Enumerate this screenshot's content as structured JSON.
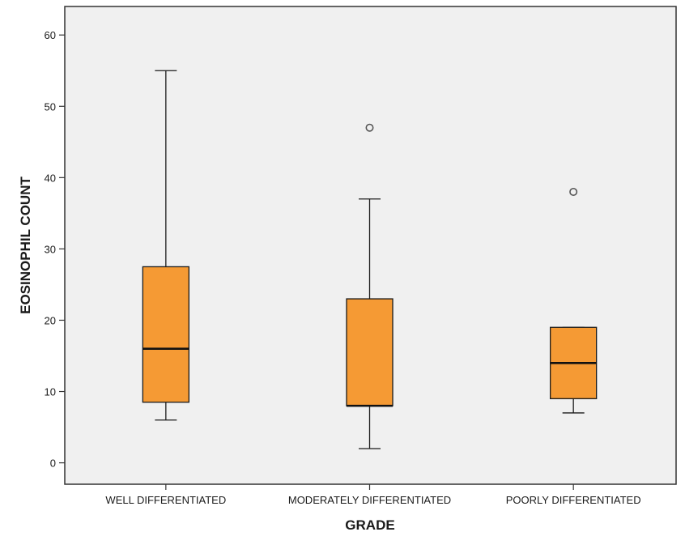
{
  "chart_data": {
    "type": "boxplot",
    "xlabel": "GRADE",
    "ylabel": "EOSINOPHIL COUNT",
    "ylim": [
      -3,
      64
    ],
    "yticks": [
      0,
      10,
      20,
      30,
      40,
      50,
      60
    ],
    "yticks_text": [
      "0",
      "10",
      "20",
      "30",
      "40",
      "50",
      "60"
    ],
    "categories": [
      "WELL DIFFERENTIATED",
      "MODERATELY DIFFERENTIATED",
      "POORLY DIFFERENTIATED"
    ],
    "boxes": [
      {
        "category": "WELL DIFFERENTIATED",
        "min": 6,
        "q1": 8.5,
        "median": 16,
        "q3": 27.5,
        "max": 55,
        "outliers": []
      },
      {
        "category": "MODERATELY DIFFERENTIATED",
        "min": 2,
        "q1": 8,
        "median": 8,
        "q3": 23,
        "max": 37,
        "outliers": [
          47
        ]
      },
      {
        "category": "POORLY DIFFERENTIATED",
        "min": 7,
        "q1": 9,
        "median": 14,
        "q3": 19,
        "max": 19,
        "outliers": [
          38
        ]
      }
    ],
    "grid": false,
    "colors": {
      "box_fill": "#F59A34",
      "plot_background": "#F0F0F0",
      "stroke": "#1a1a1a",
      "outlier_stroke": "#555555"
    }
  }
}
